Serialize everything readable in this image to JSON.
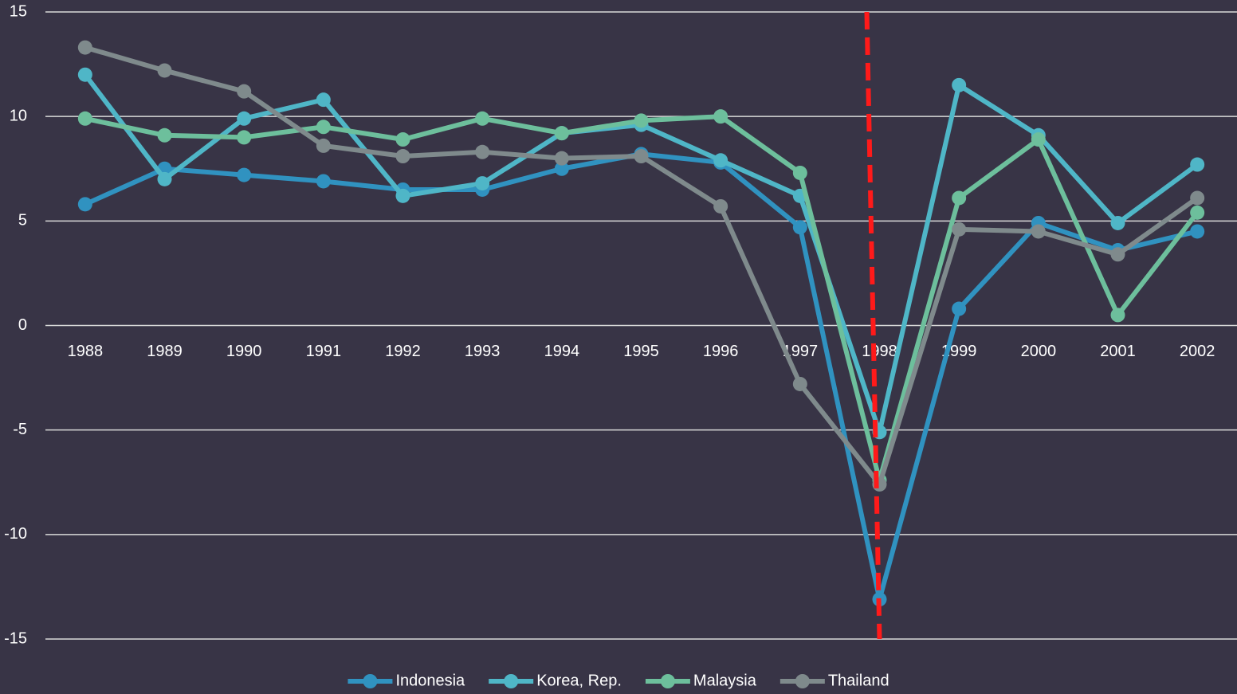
{
  "chart_data": {
    "type": "line",
    "categories": [
      "1988",
      "1989",
      "1990",
      "1991",
      "1992",
      "1993",
      "1994",
      "1995",
      "1996",
      "1997",
      "1998",
      "1999",
      "2000",
      "2001",
      "2002"
    ],
    "series": [
      {
        "name": "Indonesia",
        "color": "#3092c0",
        "values": [
          5.8,
          7.5,
          7.2,
          6.9,
          6.5,
          6.5,
          7.5,
          8.2,
          7.8,
          4.7,
          -13.1,
          0.8,
          4.9,
          3.6,
          4.5
        ]
      },
      {
        "name": "Korea, Rep.",
        "color": "#4fb6c7",
        "values": [
          12.0,
          7.0,
          9.9,
          10.8,
          6.2,
          6.8,
          9.2,
          9.6,
          7.9,
          6.2,
          -5.1,
          11.5,
          9.1,
          4.9,
          7.7
        ]
      },
      {
        "name": "Malaysia",
        "color": "#6dbf9c",
        "values": [
          9.9,
          9.1,
          9.0,
          9.5,
          8.9,
          9.9,
          9.2,
          9.8,
          10.0,
          7.3,
          -7.4,
          6.1,
          8.9,
          0.5,
          5.4
        ]
      },
      {
        "name": "Thailand",
        "color": "#7f8a8c",
        "values": [
          13.3,
          12.2,
          11.2,
          8.6,
          8.1,
          8.3,
          8.0,
          8.1,
          5.7,
          -2.8,
          -7.6,
          4.6,
          4.5,
          3.4,
          6.1
        ]
      }
    ],
    "ylim": [
      -15,
      15
    ],
    "yticks": [
      -15,
      -10,
      -5,
      0,
      5,
      10,
      15
    ],
    "grid": true,
    "legend": "bottom"
  }
}
